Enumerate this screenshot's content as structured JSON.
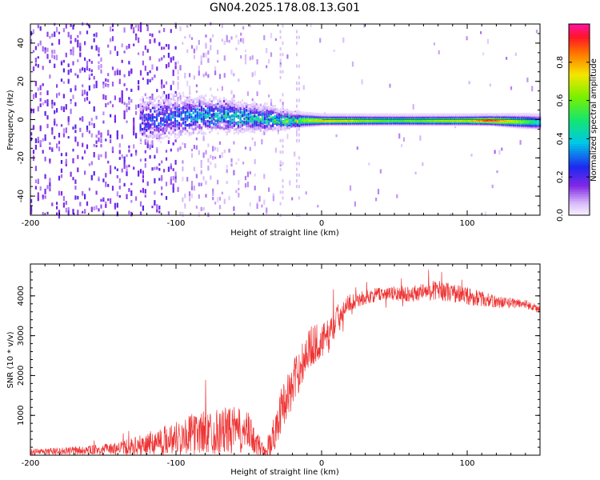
{
  "title": "GN04.2025.178.08.13.G01",
  "chart_data": [
    {
      "type": "heatmap",
      "xlabel": "Height of straight line (km)",
      "ylabel": "Frequency (Hz)",
      "xlim": [
        -200,
        150
      ],
      "ylim": [
        -50,
        50
      ],
      "x_ticks": [
        -200,
        -100,
        0,
        100
      ],
      "y_ticks": [
        -40,
        -20,
        0,
        20,
        40
      ],
      "colorbar": {
        "label": "Normalized spectral amplitude",
        "range": [
          0,
          1
        ],
        "ticks": [
          0.0,
          0.2,
          0.4,
          0.6,
          0.8
        ]
      },
      "noise_region_x": [
        -200,
        -100
      ],
      "transition_x": [
        -125,
        -15
      ],
      "signal_band": [
        {
          "x": -120,
          "freq": 0,
          "halfwidth": 9,
          "amplitude": 0.25
        },
        {
          "x": -100,
          "freq": 2,
          "halfwidth": 8,
          "amplitude": 0.3
        },
        {
          "x": -80,
          "freq": 3,
          "halfwidth": 7,
          "amplitude": 0.4
        },
        {
          "x": -60,
          "freq": 2,
          "halfwidth": 6,
          "amplitude": 0.45
        },
        {
          "x": -40,
          "freq": 1,
          "halfwidth": 5,
          "amplitude": 0.45
        },
        {
          "x": -20,
          "freq": 0,
          "halfwidth": 3,
          "amplitude": 0.6
        },
        {
          "x": 0,
          "freq": 0,
          "halfwidth": 2,
          "amplitude": 0.8
        },
        {
          "x": 50,
          "freq": 0,
          "halfwidth": 2,
          "amplitude": 0.6
        },
        {
          "x": 100,
          "freq": 0,
          "halfwidth": 2,
          "amplitude": 0.75
        },
        {
          "x": 115,
          "freq": 0,
          "halfwidth": 2,
          "amplitude": 1.0
        },
        {
          "x": 150,
          "freq": -1,
          "halfwidth": 3,
          "amplitude": 0.45
        }
      ]
    },
    {
      "type": "line",
      "xlabel": "Height of straight line (km)",
      "ylabel": "SNR (10 * v/v)",
      "xlim": [
        -200,
        150
      ],
      "ylim": [
        0,
        4800
      ],
      "x_ticks": [
        -200,
        -100,
        0,
        100
      ],
      "y_ticks": [
        1000,
        2000,
        3000,
        4000
      ],
      "series": [
        {
          "color": "#ee3333",
          "x": [
            -200,
            -180,
            -160,
            -140,
            -120,
            -110,
            -100,
            -90,
            -80,
            -70,
            -60,
            -50,
            -45,
            -40,
            -35,
            -30,
            -25,
            -20,
            -15,
            -10,
            -5,
            0,
            5,
            10,
            15,
            20,
            30,
            40,
            60,
            80,
            100,
            120,
            140,
            150
          ],
          "y": [
            80,
            100,
            130,
            170,
            280,
            380,
            450,
            520,
            580,
            600,
            620,
            560,
            300,
            150,
            250,
            900,
            1400,
            1700,
            2200,
            2600,
            2800,
            2850,
            3000,
            3400,
            3700,
            3850,
            3950,
            4050,
            4050,
            4150,
            4000,
            3850,
            3800,
            3650
          ],
          "noise": [
            80,
            90,
            110,
            150,
            280,
            350,
            420,
            500,
            550,
            580,
            600,
            500,
            320,
            200,
            400,
            550,
            550,
            600,
            550,
            550,
            500,
            450,
            420,
            350,
            260,
            200,
            180,
            170,
            200,
            250,
            230,
            150,
            110,
            100
          ]
        }
      ]
    }
  ]
}
